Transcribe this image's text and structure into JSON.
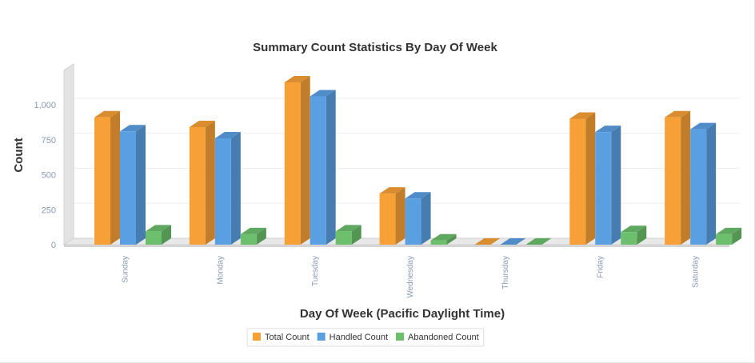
{
  "chart_data": {
    "type": "bar",
    "title": "Summary Count Statistics By Day Of Week",
    "xlabel": "Day Of Week (Pacific Daylight Time)",
    "ylabel": "Count",
    "categories": [
      "Sunday",
      "Monday",
      "Tuesday",
      "Wednesday",
      "Thursday",
      "Friday",
      "Saturday"
    ],
    "series": [
      {
        "name": "Total Count",
        "color": "#f7a035",
        "values": [
          910,
          840,
          1160,
          365,
          0,
          900,
          910
        ]
      },
      {
        "name": "Handled Count",
        "color": "#5b9fe3",
        "values": [
          810,
          760,
          1060,
          330,
          0,
          805,
          825
        ]
      },
      {
        "name": "Abandoned Count",
        "color": "#6cbf6c",
        "values": [
          95,
          75,
          95,
          30,
          0,
          90,
          75
        ]
      }
    ],
    "ylim": [
      0,
      1100
    ],
    "yticks": [
      0,
      250,
      500,
      750,
      1000
    ],
    "ytick_labels": [
      "0",
      "250",
      "500",
      "750",
      "1,000"
    ],
    "grid": true,
    "three_d": true,
    "legend_position": "bottom-center"
  }
}
